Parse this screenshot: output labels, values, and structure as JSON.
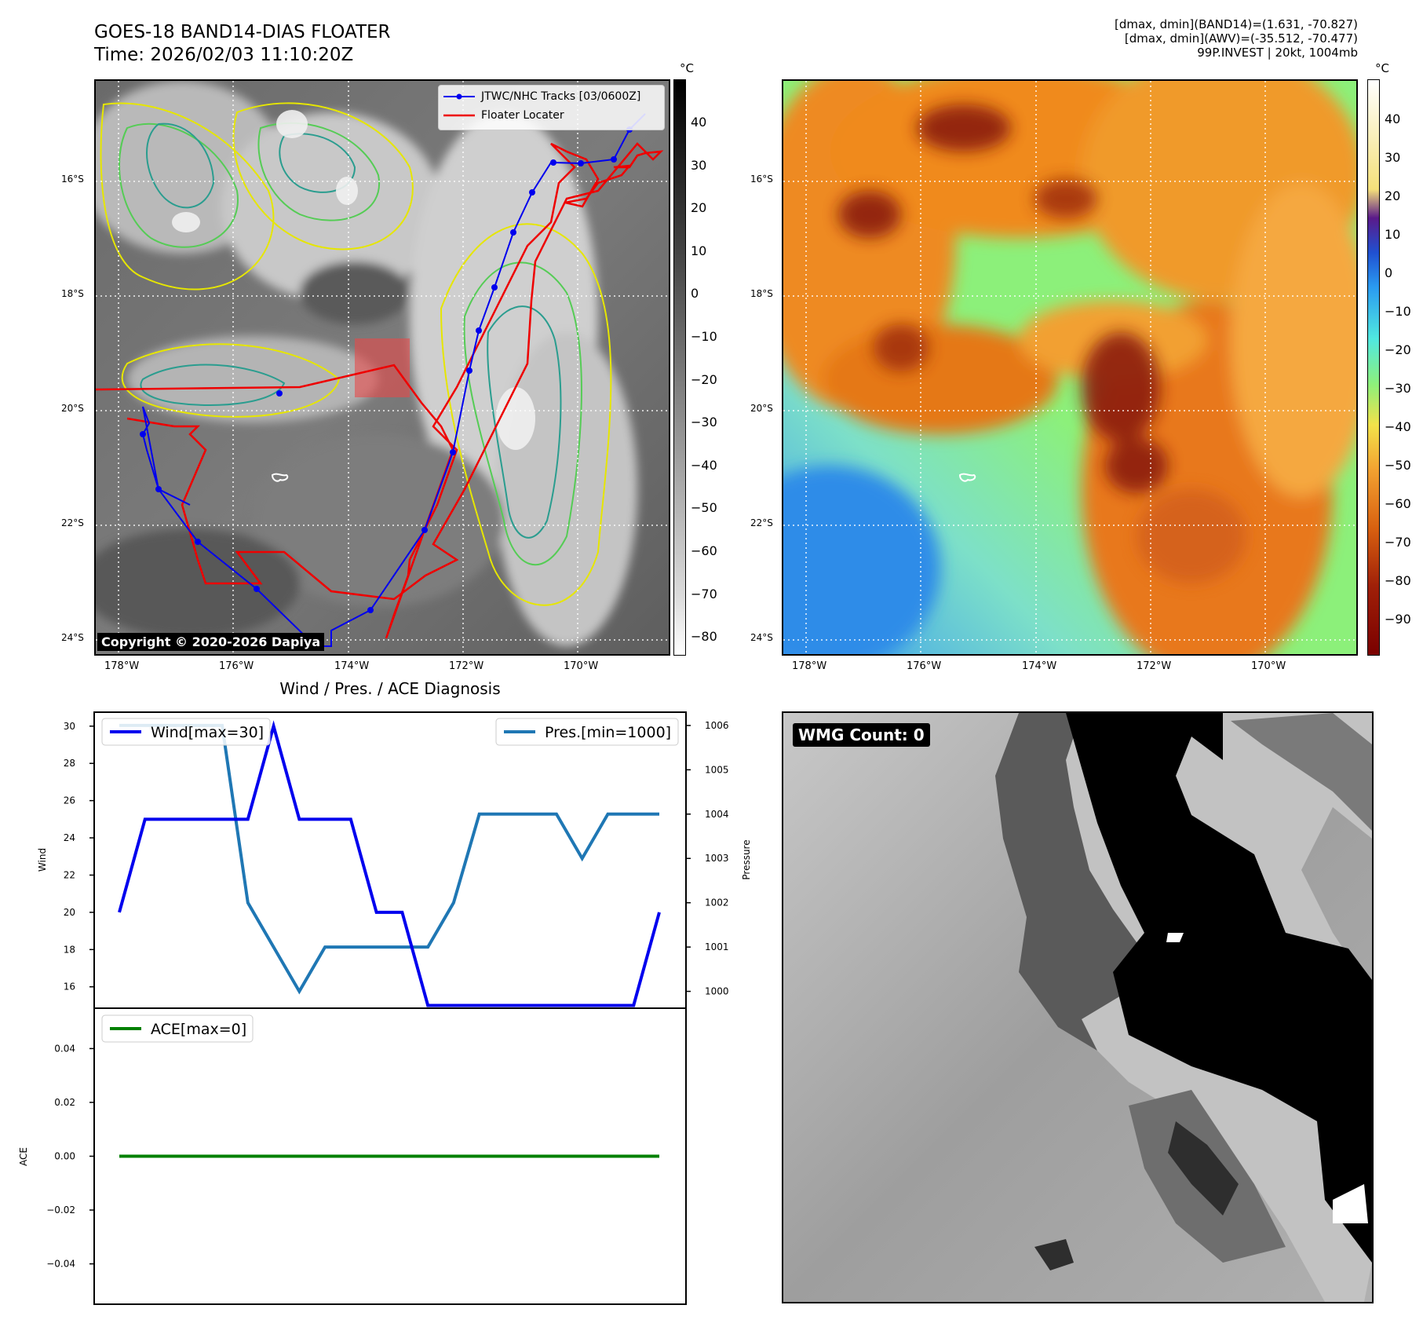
{
  "header": {
    "title_line1": "GOES-18 BAND14-DIAS FLOATER",
    "title_line2": "Time: 2026/02/03 11:10:20Z",
    "info_line1": "[dmax, dmin](BAND14)=(1.631, -70.827)",
    "info_line2": "[dmax, dmin](AWV)=(-35.512, -70.477)",
    "info_line3": "99P.INVEST | 20kt, 1004mb"
  },
  "map_axes": {
    "lon_ticks": [
      "178°W",
      "176°W",
      "174°W",
      "172°W",
      "170°W"
    ],
    "lat_ticks": [
      "16°S",
      "18°S",
      "20°S",
      "22°S",
      "24°S"
    ]
  },
  "map1": {
    "legend": [
      "JTWC/NHC Tracks [03/0600Z]",
      "Floater Locater"
    ],
    "copyright": "Copyright © 2020-2026 Dapiya",
    "colorbar_unit": "°C",
    "colorbar_ticks": [
      "40",
      "30",
      "20",
      "10",
      "0",
      "−10",
      "−20",
      "−30",
      "−40",
      "−50",
      "−60",
      "−70",
      "−80"
    ]
  },
  "map2": {
    "colorbar_unit": "°C",
    "colorbar_ticks": [
      "40",
      "30",
      "20",
      "10",
      "0",
      "−10",
      "−20",
      "−30",
      "−40",
      "−50",
      "−60",
      "−70",
      "−80",
      "−90"
    ]
  },
  "wmg": {
    "label": "WMG Count: 0"
  },
  "chart_data": [
    {
      "type": "line",
      "title": "Wind / Pres. / ACE Diagnosis",
      "ylabel": "Wind",
      "ylabel_right": "Pressure",
      "ylim": [
        14.85,
        30.75
      ],
      "ylim_right": [
        999.62,
        1006.3
      ],
      "yticks": [
        "30",
        "28",
        "26",
        "24",
        "22",
        "20",
        "18",
        "16"
      ],
      "yticks_right": [
        "1006",
        "1005",
        "1004",
        "1003",
        "1002",
        "1001",
        "1000"
      ],
      "x": [
        0,
        1,
        2,
        3,
        4,
        5,
        6,
        7,
        8,
        9,
        10,
        11,
        12,
        13,
        14,
        15,
        16,
        17,
        18,
        19,
        20,
        21
      ],
      "series": [
        {
          "name": "Wind[max=30]",
          "axis": "left",
          "color": "#0000ee",
          "values": [
            20,
            25,
            25,
            25,
            25,
            25,
            30,
            25,
            25,
            25,
            20,
            20,
            15,
            15,
            15,
            15,
            15,
            15,
            15,
            15,
            15,
            20
          ]
        },
        {
          "name": "Pres.[min=1000]",
          "axis": "right",
          "color": "#1f77b4",
          "values": [
            1006,
            1006,
            1006,
            1006,
            1006,
            1002,
            1001,
            1000,
            1001,
            1001,
            1001,
            1001,
            1001,
            1002,
            1004,
            1004,
            1004,
            1004,
            1003,
            1004,
            1004,
            1004
          ]
        }
      ]
    },
    {
      "type": "line",
      "ylabel": "ACE",
      "ylim": [
        -0.055,
        0.055
      ],
      "yticks": [
        "0.04",
        "0.02",
        "0.00",
        "−0.02",
        "−0.04"
      ],
      "x": [
        0,
        1,
        2,
        3,
        4,
        5,
        6,
        7,
        8,
        9,
        10,
        11,
        12,
        13,
        14,
        15,
        16,
        17,
        18,
        19,
        20,
        21
      ],
      "series": [
        {
          "name": "ACE[max=0]",
          "color": "#008000",
          "values": [
            0,
            0,
            0,
            0,
            0,
            0,
            0,
            0,
            0,
            0,
            0,
            0,
            0,
            0,
            0,
            0,
            0,
            0,
            0,
            0,
            0,
            0
          ]
        }
      ]
    }
  ]
}
